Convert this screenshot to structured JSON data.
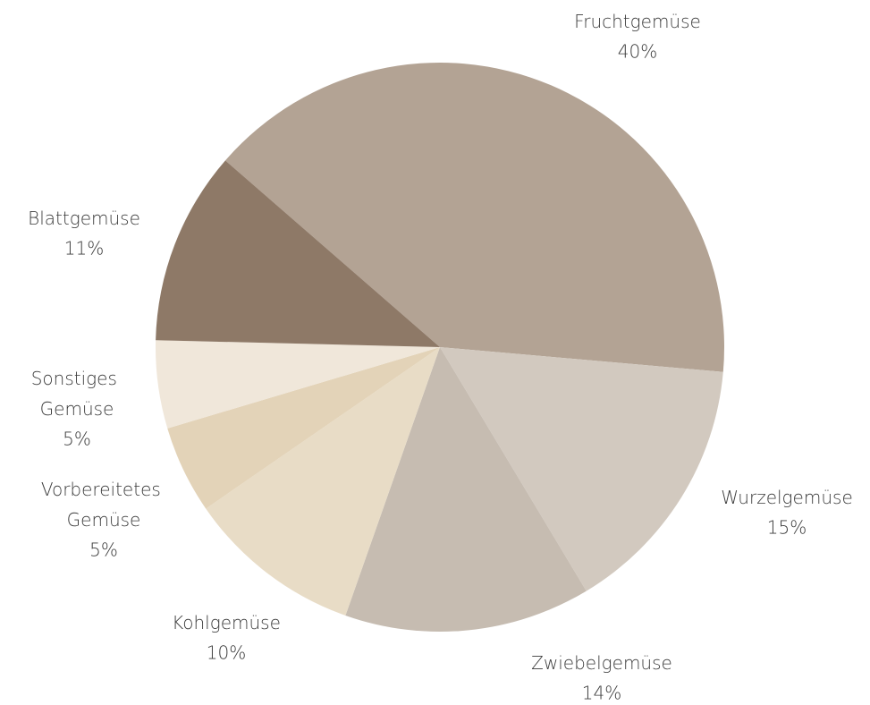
{
  "chart_data": {
    "type": "pie",
    "categories": [
      "Fruchtgemüse",
      "Wurzelgemüse",
      "Zwiebelgemüse",
      "Kohlgemüse",
      "Vorbereitetes Gemüse",
      "Sonstiges Gemüse",
      "Blattgemüse"
    ],
    "values": [
      40,
      15,
      14,
      10,
      5,
      5,
      11
    ],
    "value_labels": [
      "40%",
      "15%",
      "14%",
      "10%",
      "5%",
      "5%",
      "11%"
    ],
    "colors": [
      "#b3a394",
      "#d2c9bf",
      "#c6bcb1",
      "#e8dcc6",
      "#e3d3b8",
      "#f0e7da",
      "#8e7967"
    ]
  }
}
